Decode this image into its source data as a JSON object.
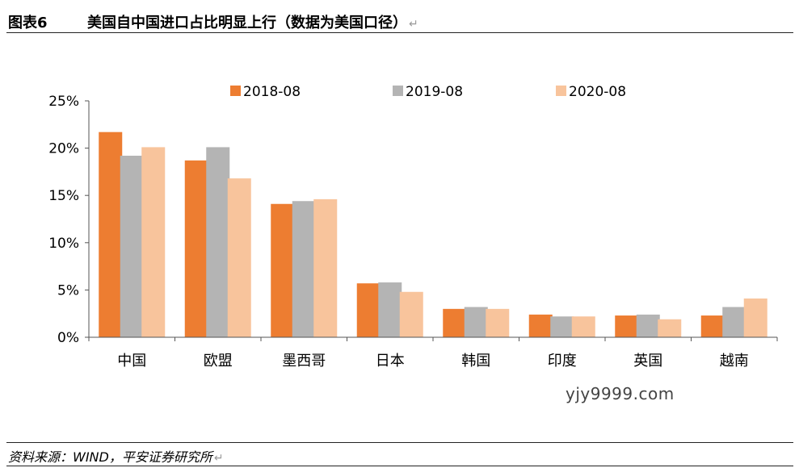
{
  "header": {
    "figure_number": "图表6",
    "title": "美国自中国进口占比明显上行（数据为美国口径）",
    "return_mark": "↵"
  },
  "chart_data": {
    "type": "bar",
    "categories": [
      "中国",
      "欧盟",
      "墨西哥",
      "日本",
      "韩国",
      "印度",
      "英国",
      "越南"
    ],
    "series": [
      {
        "name": "2018-08",
        "color": "#ED7D31",
        "values": [
          21.7,
          18.7,
          14.1,
          5.7,
          3.0,
          2.4,
          2.3,
          2.3
        ]
      },
      {
        "name": "2019-08",
        "color": "#B4B4B4",
        "values": [
          19.2,
          20.1,
          14.4,
          5.8,
          3.2,
          2.2,
          2.4,
          3.2
        ]
      },
      {
        "name": "2020-08",
        "color": "#F8C49C",
        "values": [
          20.1,
          16.8,
          14.6,
          4.8,
          3.0,
          2.2,
          1.9,
          4.1
        ]
      }
    ],
    "ylim": [
      0,
      25
    ],
    "yticks": [
      0,
      5,
      10,
      15,
      20,
      25
    ],
    "ytick_labels": [
      "0%",
      "5%",
      "10%",
      "15%",
      "20%",
      "25%"
    ],
    "legend_position": "top",
    "grid": false
  },
  "watermark": "yjy9999.com",
  "footer": {
    "source": "资料来源：WIND，平安证券研究所",
    "return_mark": "↵"
  }
}
